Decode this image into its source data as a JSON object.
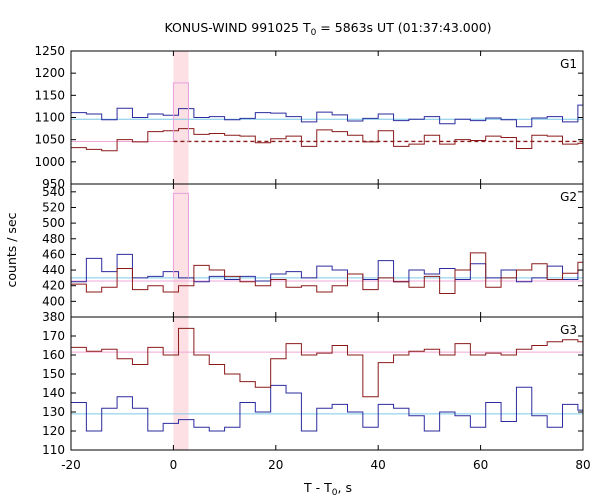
{
  "chart_data": {
    "type": "line",
    "title_main": "KONUS-WIND 991025 T",
    "title_sub": "0",
    "title_rest": " = 5863s UT (01:37:43.000)",
    "xlabel_main": "T - T",
    "xlabel_sub": "0",
    "xlabel_rest": ", s",
    "ylabel": "counts / sec",
    "xlim": [
      -20,
      80
    ],
    "x_ticks": [
      -20,
      0,
      20,
      40,
      60,
      80
    ],
    "highlight_band": [
      0,
      2.944
    ],
    "colors": {
      "blue": "#2b2b9e",
      "red": "#8b1a1a",
      "bg_blue": "#7ec8e8",
      "bg_pink": "#f0a8d8",
      "pink_step": "#e8a0e0",
      "band": "#fde0e4"
    },
    "panels": [
      {
        "label": "G1",
        "ylim": [
          950,
          1250
        ],
        "y_ticks": [
          950,
          1000,
          1050,
          1100,
          1150,
          1200,
          1250
        ],
        "bg_blue": 1096,
        "bg_red": 1046,
        "bg_red_dashed_from": 0,
        "blue_series": [
          1102,
          1105,
          1092,
          1098,
          1112,
          1108,
          1090,
          1100,
          1095,
          1105,
          1118,
          1098,
          1092,
          1088,
          1096,
          1100,
          1104,
          1094,
          1096,
          1099,
          1092,
          1098,
          1094,
          1100,
          1090,
          1098,
          1086,
          1099,
          1092,
          1102,
          1110,
          1090,
          1100,
          1092,
          1098,
          1090,
          1106,
          1089,
          1098,
          1092,
          1094,
          1089,
          1096,
          1100,
          1099,
          1096,
          1098,
          1092,
          1098,
          1103,
          1094,
          1100,
          1097,
          1102,
          1098,
          1099,
          1093,
          1096,
          1094,
          1096,
          1102,
          1100,
          1090,
          1096,
          1098,
          1090,
          1092,
          1097,
          1100,
          1095,
          1098,
          1093,
          1091,
          1096,
          1083,
          1099,
          1096,
          1078,
          1098,
          1101,
          1090,
          1094,
          1088,
          1075,
          1093,
          1099,
          1093,
          1084,
          1082,
          1086,
          1072,
          1095,
          1102,
          1094,
          1100,
          1100,
          1094,
          1098,
          1098,
          1105
        ],
        "red_series": [
          1030,
          1030,
          1028,
          1030,
          1025,
          1030,
          1030,
          1024,
          1024,
          1020,
          1048,
          1045,
          1052,
          1058,
          1060,
          1072,
          1078,
          1060,
          1062,
          1055,
          1080,
          1082,
          1080,
          1080,
          1062,
          1062,
          1064,
          1058,
          1056,
          1054,
          1060,
          1058,
          1052,
          1060,
          1055,
          1048,
          1058,
          1055,
          1040,
          1055,
          1050,
          1046,
          1030,
          1030,
          1045,
          1050,
          1055,
          1035,
          1030,
          1050,
          1060,
          1058,
          1062,
          1066,
          1058,
          1056,
          1058,
          1068,
          1052,
          1040,
          1060,
          1056,
          1060,
          1062,
          1048,
          1050,
          1052,
          1048,
          1050,
          1064,
          1058,
          1042,
          1048,
          1055,
          1050,
          1046,
          1060,
          1050,
          1052,
          1040,
          1044,
          1050,
          1046,
          1062,
          1045,
          1050,
          1030,
          1045,
          1040,
          1030,
          1060,
          1058,
          1052,
          1062,
          1048,
          1058,
          1062,
          1052,
          1046,
          1052
        ],
        "blue_steps": [
          [
            -20,
            1111
          ],
          [
            -17,
            1108
          ],
          [
            -14,
            1095
          ],
          [
            -11,
            1121
          ],
          [
            -8,
            1100
          ],
          [
            -5,
            1108
          ],
          [
            -2,
            1105
          ],
          [
            1,
            1120
          ],
          [
            4,
            1100
          ],
          [
            7,
            1102
          ],
          [
            10,
            1095
          ],
          [
            13,
            1098
          ],
          [
            16,
            1111
          ],
          [
            19,
            1110
          ],
          [
            22,
            1102
          ],
          [
            25,
            1090
          ],
          [
            28,
            1112
          ],
          [
            31,
            1106
          ],
          [
            34,
            1092
          ],
          [
            37,
            1098
          ],
          [
            40,
            1108
          ],
          [
            43,
            1093
          ],
          [
            46,
            1096
          ],
          [
            49,
            1102
          ],
          [
            52,
            1086
          ],
          [
            55,
            1096
          ],
          [
            58,
            1093
          ],
          [
            61,
            1099
          ],
          [
            64,
            1095
          ],
          [
            67,
            1079
          ],
          [
            70,
            1099
          ],
          [
            73,
            1102
          ],
          [
            76,
            1090
          ],
          [
            79,
            1128
          ]
        ],
        "red_steps": [
          [
            -20,
            1032
          ],
          [
            -17,
            1028
          ],
          [
            -14,
            1025
          ],
          [
            -11,
            1050
          ],
          [
            -8,
            1045
          ],
          [
            -5,
            1068
          ],
          [
            -2,
            1070
          ],
          [
            1,
            1075
          ],
          [
            4,
            1062
          ],
          [
            7,
            1064
          ],
          [
            10,
            1060
          ],
          [
            13,
            1058
          ],
          [
            16,
            1043
          ],
          [
            19,
            1052
          ],
          [
            22,
            1058
          ],
          [
            25,
            1035
          ],
          [
            28,
            1072
          ],
          [
            31,
            1068
          ],
          [
            34,
            1060
          ],
          [
            37,
            1045
          ],
          [
            40,
            1070
          ],
          [
            43,
            1035
          ],
          [
            46,
            1040
          ],
          [
            49,
            1060
          ],
          [
            52,
            1040
          ],
          [
            55,
            1050
          ],
          [
            58,
            1048
          ],
          [
            61,
            1058
          ],
          [
            64,
            1055
          ],
          [
            67,
            1030
          ],
          [
            70,
            1060
          ],
          [
            73,
            1058
          ],
          [
            76,
            1040
          ],
          [
            79,
            1042
          ]
        ],
        "pink_step": [
          [
            0,
            1046
          ],
          [
            0,
            1178
          ],
          [
            2.944,
            1178
          ],
          [
            2.944,
            1046
          ]
        ]
      },
      {
        "label": "G2",
        "ylim": [
          380,
          550
        ],
        "y_ticks": [
          380,
          400,
          420,
          440,
          460,
          480,
          500,
          520,
          540
        ],
        "bg_blue": 430,
        "bg_red": 426,
        "blue_steps": [
          [
            -20,
            425
          ],
          [
            -17,
            455
          ],
          [
            -14,
            438
          ],
          [
            -11,
            460
          ],
          [
            -8,
            430
          ],
          [
            -5,
            432
          ],
          [
            -2,
            438
          ],
          [
            1,
            430
          ],
          [
            4,
            425
          ],
          [
            7,
            432
          ],
          [
            10,
            428
          ],
          [
            13,
            432
          ],
          [
            16,
            426
          ],
          [
            19,
            435
          ],
          [
            22,
            438
          ],
          [
            25,
            430
          ],
          [
            28,
            445
          ],
          [
            31,
            440
          ],
          [
            34,
            435
          ],
          [
            37,
            428
          ],
          [
            40,
            452
          ],
          [
            43,
            425
          ],
          [
            46,
            440
          ],
          [
            49,
            435
          ],
          [
            52,
            442
          ],
          [
            55,
            428
          ],
          [
            58,
            448
          ],
          [
            61,
            430
          ],
          [
            64,
            440
          ],
          [
            67,
            425
          ],
          [
            70,
            430
          ],
          [
            73,
            445
          ],
          [
            76,
            428
          ],
          [
            79,
            440
          ]
        ],
        "red_steps": [
          [
            -20,
            422
          ],
          [
            -17,
            412
          ],
          [
            -14,
            418
          ],
          [
            -11,
            442
          ],
          [
            -8,
            415
          ],
          [
            -5,
            420
          ],
          [
            -2,
            412
          ],
          [
            1,
            420
          ],
          [
            4,
            446
          ],
          [
            7,
            440
          ],
          [
            10,
            432
          ],
          [
            13,
            425
          ],
          [
            16,
            420
          ],
          [
            19,
            428
          ],
          [
            22,
            418
          ],
          [
            25,
            420
          ],
          [
            28,
            412
          ],
          [
            31,
            420
          ],
          [
            34,
            435
          ],
          [
            37,
            415
          ],
          [
            40,
            430
          ],
          [
            43,
            425
          ],
          [
            46,
            418
          ],
          [
            49,
            432
          ],
          [
            52,
            410
          ],
          [
            55,
            440
          ],
          [
            58,
            462
          ],
          [
            61,
            418
          ],
          [
            64,
            430
          ],
          [
            67,
            440
          ],
          [
            70,
            448
          ],
          [
            73,
            428
          ],
          [
            76,
            436
          ],
          [
            79,
            450
          ]
        ],
        "pink_step": [
          [
            0,
            430
          ],
          [
            0,
            538
          ],
          [
            2.944,
            538
          ],
          [
            2.944,
            430
          ]
        ]
      },
      {
        "label": "G3",
        "ylim": [
          110,
          180
        ],
        "y_ticks": [
          110,
          120,
          130,
          140,
          150,
          160,
          170
        ],
        "bg_blue": 129,
        "bg_red": 161.5,
        "blue_steps": [
          [
            -20,
            135
          ],
          [
            -17,
            120
          ],
          [
            -14,
            132
          ],
          [
            -11,
            138
          ],
          [
            -8,
            132
          ],
          [
            -5,
            120
          ],
          [
            -2,
            124
          ],
          [
            1,
            126
          ],
          [
            4,
            122
          ],
          [
            7,
            120
          ],
          [
            10,
            122
          ],
          [
            13,
            135
          ],
          [
            16,
            130
          ],
          [
            19,
            144
          ],
          [
            22,
            140
          ],
          [
            25,
            120
          ],
          [
            28,
            132
          ],
          [
            31,
            134
          ],
          [
            34,
            130
          ],
          [
            37,
            122
          ],
          [
            40,
            134
          ],
          [
            43,
            132
          ],
          [
            46,
            128
          ],
          [
            49,
            120
          ],
          [
            52,
            130
          ],
          [
            55,
            128
          ],
          [
            58,
            122
          ],
          [
            61,
            135
          ],
          [
            64,
            125
          ],
          [
            67,
            143
          ],
          [
            70,
            128
          ],
          [
            73,
            122
          ],
          [
            76,
            134
          ],
          [
            79,
            131
          ]
        ],
        "red_steps": [
          [
            -20,
            164
          ],
          [
            -17,
            162
          ],
          [
            -14,
            163
          ],
          [
            -11,
            158
          ],
          [
            -8,
            155
          ],
          [
            -5,
            164
          ],
          [
            -2,
            160
          ],
          [
            1,
            174
          ],
          [
            4,
            160
          ],
          [
            7,
            155
          ],
          [
            10,
            150
          ],
          [
            13,
            146
          ],
          [
            16,
            143
          ],
          [
            19,
            158
          ],
          [
            22,
            166
          ],
          [
            25,
            160
          ],
          [
            28,
            161
          ],
          [
            31,
            165
          ],
          [
            34,
            160
          ],
          [
            37,
            138
          ],
          [
            40,
            156
          ],
          [
            43,
            160
          ],
          [
            46,
            162
          ],
          [
            49,
            163
          ],
          [
            52,
            160
          ],
          [
            55,
            166
          ],
          [
            58,
            160
          ],
          [
            61,
            161
          ],
          [
            64,
            160
          ],
          [
            67,
            163
          ],
          [
            70,
            165
          ],
          [
            73,
            167
          ],
          [
            76,
            168
          ],
          [
            79,
            167
          ]
        ],
        "pink_step": null
      }
    ]
  }
}
